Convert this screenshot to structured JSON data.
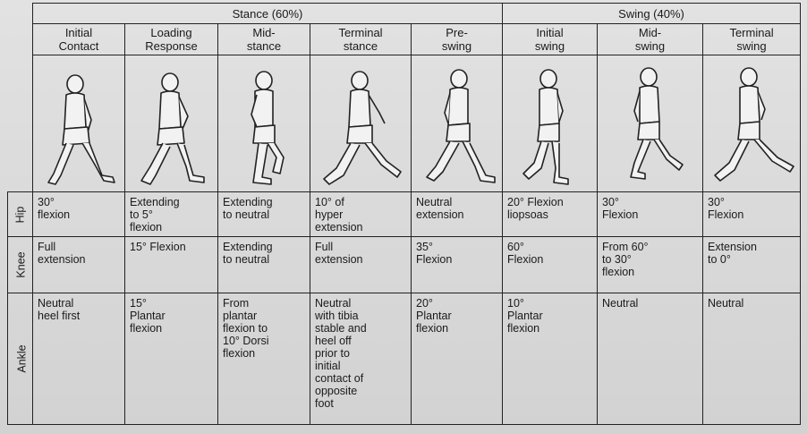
{
  "groups": {
    "stance": "Stance (60%)",
    "swing": "Swing (40%)"
  },
  "phases": [
    "Initial\nContact",
    "Loading\nResponse",
    "Mid-\nstance",
    "Terminal\nstance",
    "Pre-\nswing",
    "Initial\nswing",
    "Mid-\nswing",
    "Terminal\nswing"
  ],
  "rows": [
    {
      "label": "Hip",
      "cells": [
        "30°\nflexion",
        "Extending\nto 5°\nflexion",
        "Extending\nto neutral",
        "10° of\nhyper\nextension",
        "Neutral\nextension",
        "20° Flexion\nliopsoas",
        "30°\nFlexion",
        "30°\nFlexion"
      ]
    },
    {
      "label": "Knee",
      "cells": [
        "Full\nextension",
        "15° Flexion",
        "Extending\nto neutral",
        "Full\nextension",
        "35°\nFlexion",
        "60°\nFlexion",
        "From 60°\nto 30°\nflexion",
        "Extension\nto 0°"
      ]
    },
    {
      "label": "Ankle",
      "cells": [
        "Neutral\nheel first",
        "15°\nPlantar\nflexion",
        "From\nplantar\nflexion to\n10° Dorsi\nflexion",
        "Neutral\nwith tibia\nstable and\nheel off\nprior to\ninitial\ncontact of\nopposite\nfoot",
        "20°\nPlantar\nflexion",
        "10°\nPlantar\nflexion",
        "Neutral",
        "Neutral"
      ]
    }
  ]
}
